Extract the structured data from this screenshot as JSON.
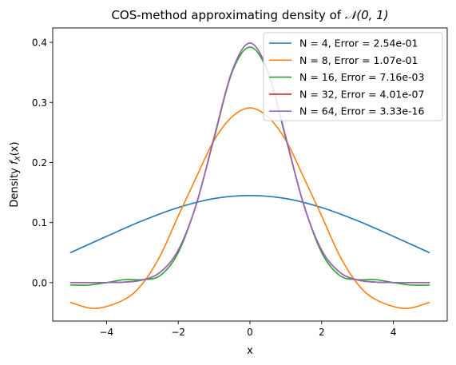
{
  "chart_data": {
    "type": "line",
    "title_prefix": "COS-method approximating density of ",
    "title_math": "𝒩(0, 1)",
    "xlabel": "x",
    "ylabel_prefix": "Density ",
    "ylabel_math": "f",
    "ylabel_sub": "X",
    "ylabel_arg": "(x)",
    "xlim": [
      -5.5,
      5.5
    ],
    "ylim": [
      -0.064,
      0.424
    ],
    "xticks": [
      -4,
      -2,
      0,
      2,
      4
    ],
    "xtick_labels": [
      "−4",
      "−2",
      "0",
      "2",
      "4"
    ],
    "yticks": [
      0.0,
      0.1,
      0.2,
      0.3,
      0.4
    ],
    "ytick_labels": [
      "0.0",
      "0.1",
      "0.2",
      "0.3",
      "0.4"
    ],
    "legend_position": "top-right",
    "grid": false,
    "x_range": [
      -5,
      5
    ],
    "series": [
      {
        "name": "N = 4, Error = 2.54e-01",
        "color": "#1f77b4",
        "x": [
          -5,
          -4,
          -3,
          -2,
          -1,
          0,
          1,
          2,
          3,
          4,
          5
        ],
        "y": [
          0.05,
          0.077,
          0.103,
          0.125,
          0.14,
          0.145,
          0.14,
          0.125,
          0.103,
          0.077,
          0.05
        ]
      },
      {
        "name": "N = 8, Error = 1.07e-01",
        "color": "#ff7f0e",
        "x": [
          -5,
          -4.3,
          -3.5,
          -3,
          -2.5,
          -2,
          -1.5,
          -1,
          -0.5,
          0,
          0.5,
          1,
          1.5,
          2,
          2.5,
          3,
          3.5,
          4.3,
          5
        ],
        "y": [
          -0.033,
          -0.043,
          -0.028,
          -0.002,
          0.045,
          0.111,
          0.175,
          0.237,
          0.276,
          0.291,
          0.276,
          0.237,
          0.175,
          0.111,
          0.045,
          -0.002,
          -0.028,
          -0.043,
          -0.033
        ]
      },
      {
        "name": "N = 16, Error = 7.16e-03",
        "color": "#2ca02c",
        "x": [
          -5,
          -4.5,
          -4,
          -3.5,
          -3,
          -2.5,
          -2,
          -1.5,
          -1,
          -0.5,
          0,
          0.5,
          1,
          1.5,
          2,
          2.5,
          3,
          3.5,
          4,
          4.5,
          5
        ],
        "y": [
          -0.004,
          -0.004,
          0.0,
          0.005,
          0.005,
          0.012,
          0.05,
          0.13,
          0.24,
          0.35,
          0.392,
          0.35,
          0.24,
          0.13,
          0.05,
          0.012,
          0.005,
          0.005,
          0.0,
          -0.004,
          -0.004
        ]
      },
      {
        "name": "N = 32, Error = 4.01e-07",
        "color": "#d62728",
        "x": [
          -5,
          -4.5,
          -4,
          -3.5,
          -3,
          -2.5,
          -2,
          -1.5,
          -1,
          -0.5,
          0,
          0.5,
          1,
          1.5,
          2,
          2.5,
          3,
          3.5,
          4,
          4.5,
          5
        ],
        "y": [
          0.0,
          0.0,
          0.0001,
          0.0009,
          0.0044,
          0.0175,
          0.054,
          0.1295,
          0.242,
          0.352,
          0.3989,
          0.352,
          0.242,
          0.1295,
          0.054,
          0.0175,
          0.0044,
          0.0009,
          0.0001,
          0.0,
          0.0
        ]
      },
      {
        "name": "N = 64, Error = 3.33e-16",
        "color": "#9467bd",
        "x": [
          -5,
          -4.5,
          -4,
          -3.5,
          -3,
          -2.5,
          -2,
          -1.5,
          -1,
          -0.5,
          0,
          0.5,
          1,
          1.5,
          2,
          2.5,
          3,
          3.5,
          4,
          4.5,
          5
        ],
        "y": [
          0.0,
          0.0,
          0.0001,
          0.0009,
          0.0044,
          0.0175,
          0.054,
          0.1295,
          0.242,
          0.352,
          0.3989,
          0.352,
          0.242,
          0.1295,
          0.054,
          0.0175,
          0.0044,
          0.0009,
          0.0001,
          0.0,
          0.0
        ]
      }
    ]
  }
}
